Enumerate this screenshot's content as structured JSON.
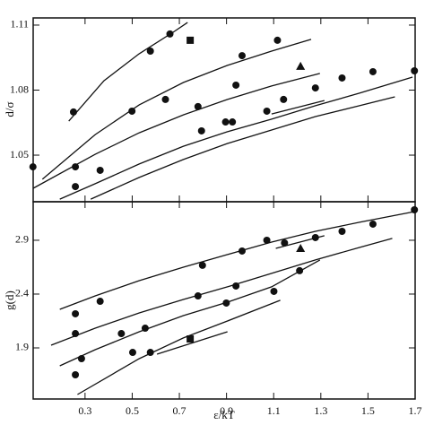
{
  "chart_data": [
    {
      "type": "scatter",
      "y_label": "d/σ",
      "xlim": [
        0.08,
        1.7
      ],
      "ylim": [
        1.0285,
        1.1133
      ],
      "xticks": [
        0.3,
        0.5,
        0.7,
        0.9,
        1.1,
        1.3,
        1.5,
        1.7
      ],
      "yticks": [
        1.05,
        1.08,
        1.11
      ],
      "color": "#111111",
      "series": [
        {
          "marker": "circle",
          "x": [
            0.079,
            0.251,
            0.259,
            0.259,
            0.364,
            0.499,
            0.577,
            0.641,
            0.66,
            0.779,
            0.794,
            0.966,
            0.94,
            0.896,
            0.925,
            1.071,
            1.116,
            1.142,
            1.277,
            1.39,
            1.521,
            1.697
          ],
          "values": [
            1.0446,
            1.0699,
            1.0446,
            1.0355,
            1.043,
            1.0703,
            1.098,
            1.0757,
            1.1059,
            1.0724,
            1.0612,
            1.0959,
            1.0823,
            1.0653,
            1.0653,
            1.0703,
            1.103,
            1.0757,
            1.081,
            1.0856,
            1.0885,
            1.0889
          ]
        },
        {
          "marker": "square",
          "x": [
            0.746
          ],
          "values": [
            1.103
          ]
        },
        {
          "marker": "triangle",
          "x": [
            1.214
          ],
          "values": [
            1.091
          ]
        },
        {
          "marker": "line",
          "x": [
            0.231,
            0.38,
            0.53,
            0.679,
            0.735
          ],
          "values": [
            1.0657,
            1.0843,
            1.0968,
            1.1071,
            1.1112
          ]
        },
        {
          "marker": "line",
          "x": [
            0.119,
            0.343,
            0.53,
            0.717,
            0.904,
            1.091,
            1.259
          ],
          "values": [
            1.0389,
            1.0595,
            1.0732,
            1.0835,
            1.0914,
            1.098,
            1.1034
          ]
        },
        {
          "marker": "line",
          "x": [
            0.08,
            0.343,
            0.53,
            0.717,
            0.904,
            1.091,
            1.296
          ],
          "values": [
            1.0347,
            1.0504,
            1.0603,
            1.0686,
            1.0757,
            1.0819,
            1.0877
          ]
        },
        {
          "marker": "line",
          "x": [
            0.193,
            0.343,
            0.53,
            0.717,
            0.904,
            1.091,
            1.277,
            1.464,
            1.689
          ],
          "values": [
            1.0297,
            1.0368,
            1.0459,
            1.0541,
            1.0608,
            1.0666,
            1.0728,
            1.0786,
            1.086
          ]
        },
        {
          "marker": "line",
          "x": [
            0.324,
            0.53,
            0.717,
            0.904,
            1.091,
            1.277,
            1.464,
            1.614
          ],
          "values": [
            1.0297,
            1.0397,
            1.048,
            1.0554,
            1.0616,
            1.0678,
            1.0728,
            1.0769
          ]
        },
        {
          "marker": "line",
          "x": [
            1.091,
            1.315
          ],
          "values": [
            1.069,
            1.0752
          ]
        }
      ]
    },
    {
      "type": "scatter",
      "y_label": "g(d)",
      "x_label": "ε/kT",
      "xlim": [
        0.08,
        1.7
      ],
      "ylim": [
        1.425,
        3.258
      ],
      "xticks": [
        0.3,
        0.5,
        0.7,
        0.9,
        1.1,
        1.3,
        1.5,
        1.7
      ],
      "yticks": [
        1.9,
        2.4,
        2.9
      ],
      "color": "#111111",
      "series": [
        {
          "marker": "circle",
          "x": [
            0.285,
            0.259,
            0.259,
            0.259,
            0.364,
            0.454,
            0.502,
            0.555,
            0.577,
            0.798,
            0.779,
            0.94,
            0.966,
            0.899,
            1.071,
            1.101,
            1.146,
            1.21,
            1.277,
            1.39,
            1.521,
            1.697
          ],
          "values": [
            1.8,
            2.217,
            2.033,
            1.65,
            2.333,
            2.033,
            1.858,
            2.083,
            1.858,
            2.667,
            2.383,
            2.475,
            2.8,
            2.317,
            2.9,
            2.425,
            2.875,
            2.617,
            2.925,
            2.983,
            3.05,
            3.183
          ]
        },
        {
          "marker": "square",
          "x": [
            0.746
          ],
          "values": [
            1.983
          ]
        },
        {
          "marker": "triangle",
          "x": [
            1.214
          ],
          "values": [
            2.825
          ]
        },
        {
          "marker": "line",
          "x": [
            0.193,
            0.343,
            0.53,
            0.717,
            0.904,
            1.091,
            1.277,
            1.464,
            1.7
          ],
          "values": [
            2.258,
            2.383,
            2.525,
            2.65,
            2.767,
            2.883,
            2.983,
            3.067,
            3.167
          ]
        },
        {
          "marker": "line",
          "x": [
            0.156,
            0.343,
            0.53,
            0.717,
            0.904,
            1.091,
            1.277,
            1.464,
            1.603
          ],
          "values": [
            1.925,
            2.083,
            2.225,
            2.35,
            2.467,
            2.592,
            2.717,
            2.833,
            2.917
          ]
        },
        {
          "marker": "line",
          "x": [
            0.193,
            0.343,
            0.53,
            0.717,
            0.904,
            1.091,
            1.296
          ],
          "values": [
            1.733,
            1.883,
            2.05,
            2.2,
            2.325,
            2.467,
            2.717
          ]
        },
        {
          "marker": "line",
          "x": [
            0.268,
            0.53,
            0.717,
            0.904,
            1.128
          ],
          "values": [
            1.467,
            1.8,
            1.992,
            2.15,
            2.342
          ]
        },
        {
          "marker": "line",
          "x": [
            0.605,
            0.904
          ],
          "values": [
            1.842,
            2.05
          ]
        },
        {
          "marker": "line",
          "x": [
            1.109,
            1.315
          ],
          "values": [
            2.825,
            2.942
          ]
        }
      ]
    }
  ]
}
